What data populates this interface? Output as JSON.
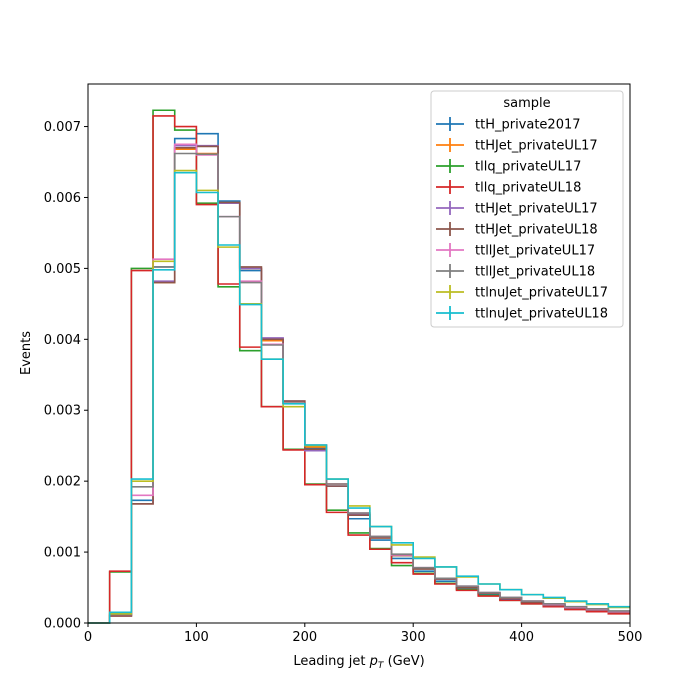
{
  "chart_data": {
    "type": "step-histogram",
    "xlabel": "Leading jet",
    "xlabel_math": "p",
    "xlabel_math_sub": "T",
    "xlabel_unit": "(GeV)",
    "ylabel": "Events",
    "xlim": [
      0,
      500
    ],
    "ylim": [
      0,
      0.0076
    ],
    "xticks": [
      0,
      100,
      200,
      300,
      400,
      500
    ],
    "yticks": [
      0.0,
      0.001,
      0.002,
      0.003,
      0.004,
      0.005,
      0.006,
      0.007
    ],
    "ytick_labels": [
      "0.000",
      "0.001",
      "0.002",
      "0.003",
      "0.004",
      "0.005",
      "0.006",
      "0.007"
    ],
    "grid": false,
    "legend_title": "sample",
    "legend_position": "top-right",
    "bin_edges": [
      0,
      20,
      40,
      60,
      80,
      100,
      120,
      140,
      160,
      180,
      200,
      220,
      240,
      260,
      280,
      300,
      320,
      340,
      360,
      380,
      400,
      420,
      440,
      460,
      480,
      500
    ],
    "series": [
      {
        "name": "ttH_private2017",
        "color": "#1f77b4",
        "values": [
          0,
          0.00011,
          0.00173,
          0.00502,
          0.00683,
          0.0069,
          0.00595,
          0.00497,
          0.00398,
          0.0031,
          0.00247,
          0.00193,
          0.00147,
          0.00117,
          0.00091,
          0.00073,
          0.00059,
          0.00048,
          0.00041,
          0.00034,
          0.00029,
          0.00025,
          0.00021,
          0.00018,
          0.00015
        ]
      },
      {
        "name": "ttHJet_privateUL17",
        "color": "#ff7f0e",
        "values": [
          0,
          0.0001,
          0.00168,
          0.0048,
          0.00668,
          0.00662,
          0.00592,
          0.005,
          0.00398,
          0.0031,
          0.00248,
          0.00196,
          0.00153,
          0.0012,
          0.00095,
          0.00077,
          0.00062,
          0.0005,
          0.00042,
          0.00035,
          0.00029,
          0.00025,
          0.00021,
          0.00018,
          0.00016
        ]
      },
      {
        "name": "tllq_privateUL17",
        "color": "#2ca02c",
        "values": [
          0,
          0.00072,
          0.005,
          0.00723,
          0.00695,
          0.00592,
          0.00474,
          0.00384,
          0.00305,
          0.00245,
          0.00196,
          0.00159,
          0.00127,
          0.00105,
          0.00081,
          0.0007,
          0.00056,
          0.00047,
          0.00039,
          0.00032,
          0.00027,
          0.00023,
          0.0002,
          0.00017,
          0.00014
        ]
      },
      {
        "name": "tllq_privateUL18",
        "color": "#d62728",
        "values": [
          0,
          0.00073,
          0.00497,
          0.00715,
          0.007,
          0.0059,
          0.00478,
          0.00389,
          0.00305,
          0.00244,
          0.00195,
          0.00156,
          0.00124,
          0.00104,
          0.00085,
          0.00069,
          0.00055,
          0.00046,
          0.00038,
          0.00032,
          0.00027,
          0.00023,
          0.00019,
          0.00016,
          0.00013
        ]
      },
      {
        "name": "ttHJet_privateUL17",
        "color": "#9467bd",
        "values": [
          0,
          0.0001,
          0.00168,
          0.00482,
          0.00673,
          0.00673,
          0.00592,
          0.005,
          0.00402,
          0.00313,
          0.00243,
          0.00193,
          0.00153,
          0.00121,
          0.00096,
          0.00077,
          0.00062,
          0.00051,
          0.00042,
          0.00035,
          0.0003,
          0.00025,
          0.00021,
          0.00018,
          0.00016
        ]
      },
      {
        "name": "ttHJet_privateUL18",
        "color": "#8c564b",
        "values": [
          0,
          0.0001,
          0.00168,
          0.0048,
          0.0067,
          0.00672,
          0.00593,
          0.00502,
          0.004,
          0.00313,
          0.00245,
          0.00193,
          0.00152,
          0.0012,
          0.00095,
          0.00076,
          0.00062,
          0.0005,
          0.00042,
          0.00035,
          0.00029,
          0.00025,
          0.00021,
          0.00018,
          0.00015
        ]
      },
      {
        "name": "ttllJet_privateUL17",
        "color": "#e377c2",
        "values": [
          0,
          0.00012,
          0.0018,
          0.00513,
          0.00675,
          0.0066,
          0.00573,
          0.00482,
          0.00393,
          0.0031,
          0.0025,
          0.00196,
          0.00155,
          0.00122,
          0.00096,
          0.00078,
          0.00063,
          0.00052,
          0.00043,
          0.00036,
          0.00031,
          0.00026,
          0.00022,
          0.00019,
          0.00016
        ]
      },
      {
        "name": "ttllJet_privateUL18",
        "color": "#7f7f7f",
        "values": [
          0,
          0.00012,
          0.00192,
          0.00502,
          0.00662,
          0.00661,
          0.00573,
          0.0048,
          0.00392,
          0.0031,
          0.00251,
          0.00196,
          0.00155,
          0.00122,
          0.00097,
          0.00078,
          0.00063,
          0.00052,
          0.00043,
          0.00036,
          0.00031,
          0.00027,
          0.00023,
          0.0002,
          0.00017
        ]
      },
      {
        "name": "ttlnuJet_privateUL17",
        "color": "#bcbd22",
        "values": [
          0,
          0.00013,
          0.002,
          0.0051,
          0.00638,
          0.0061,
          0.0053,
          0.0045,
          0.00372,
          0.00305,
          0.0025,
          0.00203,
          0.00165,
          0.00136,
          0.0011,
          0.00093,
          0.00079,
          0.00065,
          0.00055,
          0.00047,
          0.0004,
          0.00035,
          0.0003,
          0.00026,
          0.00022
        ]
      },
      {
        "name": "ttlnuJet_privateUL18",
        "color": "#17becf",
        "values": [
          0,
          0.00015,
          0.00203,
          0.00498,
          0.00635,
          0.00607,
          0.00533,
          0.00449,
          0.00372,
          0.00309,
          0.00251,
          0.00203,
          0.00162,
          0.00136,
          0.00113,
          0.00091,
          0.00079,
          0.00066,
          0.00055,
          0.00047,
          0.0004,
          0.00036,
          0.00031,
          0.00027,
          0.00023
        ]
      }
    ]
  }
}
